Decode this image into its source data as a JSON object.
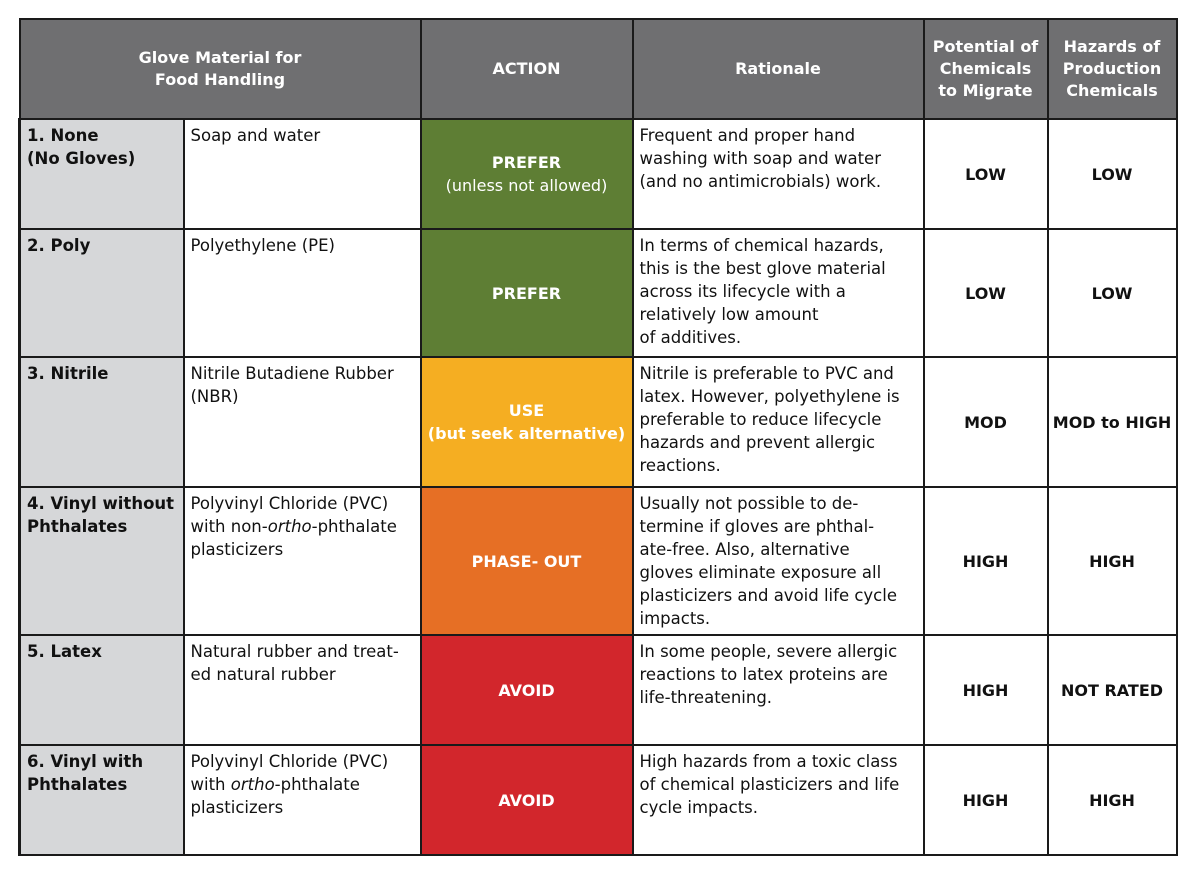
{
  "header": {
    "material": [
      "Glove Material for",
      "Food Handling"
    ],
    "action": "ACTION",
    "rationale": "Rationale",
    "migrate": [
      "Potential of",
      "Chemicals",
      "to Migrate"
    ],
    "hazards": [
      "Hazards of",
      "Production",
      "Chemicals"
    ]
  },
  "rows": [
    {
      "name": [
        "1.  None",
        "(No Gloves)"
      ],
      "material": [
        "Soap and water"
      ],
      "action": "PREFER",
      "action_sub": "(unless not allowed)",
      "action_color": "#5e7e34",
      "rationale": [
        "Frequent and proper hand",
        "washing with soap and water",
        "(and no antimicrobials) work."
      ],
      "migrate": "LOW",
      "hazards": "LOW"
    },
    {
      "name": [
        "2.  Poly"
      ],
      "material": [
        "Polyethylene (PE)"
      ],
      "action": "PREFER",
      "action_color": "#5e7e34",
      "rationale": [
        "In terms of chemical hazards,",
        "this is the best glove material",
        "across its lifecycle with a",
        "relatively low amount",
        "of additives."
      ],
      "migrate": "LOW",
      "hazards": "LOW"
    },
    {
      "name": [
        "3.  Nitrile"
      ],
      "material": [
        "Nitrile Butadiene Rubber",
        "(NBR)"
      ],
      "action": "USE",
      "action_sub": "(but seek alternative)",
      "action_color": "#f5ae22",
      "rationale": [
        "Nitrile is preferable to PVC and",
        "latex. However, polyethylene is",
        "preferable to reduce lifecycle",
        "hazards and prevent allergic",
        "reactions."
      ],
      "migrate": "MOD",
      "hazards": "MOD to HIGH"
    },
    {
      "name": [
        "4.  Vinyl without",
        "Phthalates"
      ],
      "material_pre": "Polyvinyl Chloride (PVC)",
      "material_a": "with non-",
      "material_em": "ortho",
      "material_b": "-phthalate",
      "material_post": "plasticizers",
      "action": "PHASE- OUT",
      "action_color": "#e66f25",
      "rationale": [
        "Usually not possible to de-",
        "termine if gloves are phthal-",
        "ate-free. Also, alternative",
        "gloves eliminate exposure all",
        "plasticizers and avoid life cycle",
        "impacts."
      ],
      "migrate": "HIGH",
      "hazards": "HIGH"
    },
    {
      "name": [
        "5.  Latex"
      ],
      "material": [
        "Natural rubber and treat-",
        "ed natural rubber"
      ],
      "action": "AVOID",
      "action_color": "#d2262c",
      "rationale": [
        "In some people, severe allergic",
        "reactions to latex proteins are",
        "life-threatening."
      ],
      "migrate": "HIGH",
      "hazards": "NOT RATED"
    },
    {
      "name": [
        "6.  Vinyl with",
        "Phthalates"
      ],
      "material_pre": "Polyvinyl Chloride (PVC)",
      "material_a": "with ",
      "material_em": "ortho",
      "material_b": "-phthalate",
      "material_post": "plasticizers",
      "action": "AVOID",
      "action_color": "#d2262c",
      "rationale": [
        "High hazards from a toxic class",
        "of chemical plasticizers and life",
        "cycle impacts."
      ],
      "migrate": "HIGH",
      "hazards": "HIGH"
    }
  ]
}
